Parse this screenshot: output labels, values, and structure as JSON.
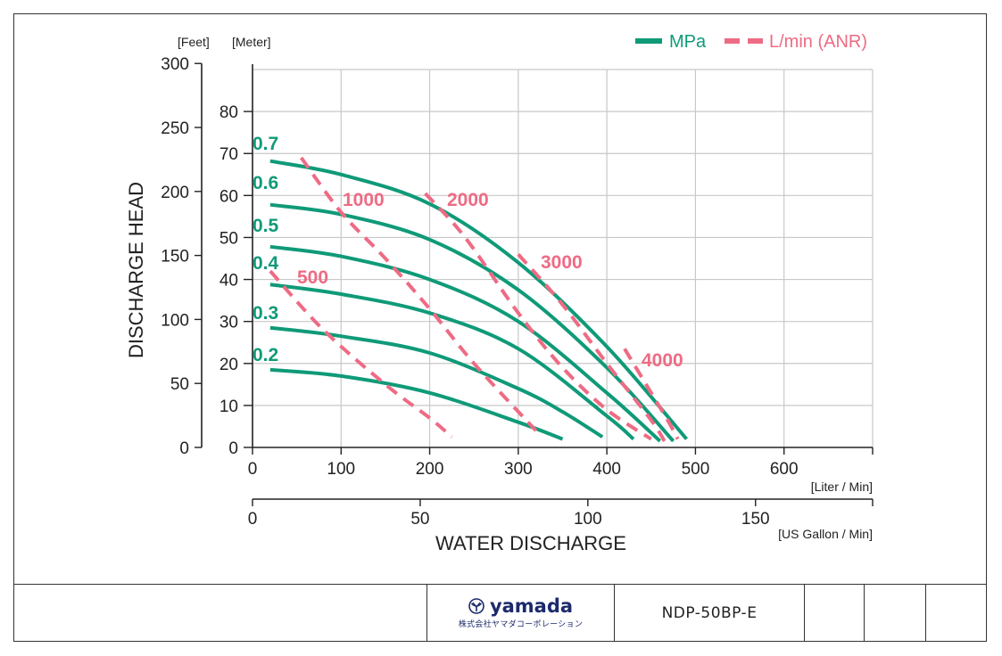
{
  "chart_data": {
    "type": "line",
    "xlabel": "WATER DISCHARGE",
    "x_unit_liter": "[Liter / Min]",
    "x_unit_gallon": "[US Gallon / Min]",
    "ylabel": "DISCHARGE HEAD",
    "y_unit_feet": "[Feet]",
    "y_unit_meter": "[Meter]",
    "xlim_liter": [
      0,
      700
    ],
    "ylim_meter": [
      0,
      90
    ],
    "x_ticks_liter": [
      0,
      100,
      200,
      300,
      400,
      500,
      600
    ],
    "x_ticks_gallon": [
      0,
      50,
      100,
      150
    ],
    "y_ticks_meter": [
      0,
      10,
      20,
      30,
      40,
      50,
      60,
      70,
      80
    ],
    "y_ticks_feet": [
      0,
      50,
      100,
      150,
      200,
      250,
      300
    ],
    "grid": true,
    "legend": {
      "position": "top-right",
      "items": [
        {
          "label": "MPa",
          "style": "solid",
          "color": "#0f9a78"
        },
        {
          "label": "L/min (ANR)",
          "style": "dashed",
          "color": "#ee6b84"
        }
      ]
    },
    "series": [
      {
        "name": "0.7",
        "kind": "MPa",
        "x": [
          20,
          100,
          200,
          300,
          400,
          490
        ],
        "y": [
          68.2,
          65,
          58,
          44,
          24,
          2
        ]
      },
      {
        "name": "0.6",
        "kind": "MPa",
        "x": [
          20,
          100,
          200,
          300,
          400,
          475
        ],
        "y": [
          57.8,
          55.5,
          49.5,
          37.5,
          19,
          1.5
        ]
      },
      {
        "name": "0.5",
        "kind": "MPa",
        "x": [
          20,
          100,
          200,
          300,
          400,
          460
        ],
        "y": [
          47.8,
          45.5,
          40,
          30,
          13,
          1.5
        ]
      },
      {
        "name": "0.4",
        "kind": "MPa",
        "x": [
          20,
          100,
          200,
          300,
          400,
          430
        ],
        "y": [
          38.8,
          36.5,
          32,
          23.5,
          7.5,
          2
        ]
      },
      {
        "name": "0.3",
        "kind": "MPa",
        "x": [
          20,
          100,
          200,
          300,
          350,
          395
        ],
        "y": [
          28.5,
          26.5,
          22.5,
          14,
          8.5,
          2.5
        ]
      },
      {
        "name": "0.2",
        "kind": "MPa",
        "x": [
          20,
          100,
          200,
          300,
          350
        ],
        "y": [
          18.5,
          17,
          13,
          6,
          2
        ]
      },
      {
        "name": "500",
        "kind": "L/min (ANR)",
        "x": [
          20,
          80,
          150,
          200,
          225
        ],
        "y": [
          42,
          28,
          15,
          7,
          2.5
        ]
      },
      {
        "name": "1000",
        "kind": "L/min (ANR)",
        "x": [
          55,
          100,
          150,
          200,
          250,
          320
        ],
        "y": [
          69,
          56,
          45,
          33,
          20,
          4
        ]
      },
      {
        "name": "2000",
        "kind": "L/min (ANR)",
        "x": [
          195,
          240,
          300,
          350,
          400,
          450
        ],
        "y": [
          60.5,
          50,
          32,
          19,
          9,
          2
        ]
      },
      {
        "name": "3000",
        "kind": "L/min (ANR)",
        "x": [
          300,
          350,
          400,
          450,
          465
        ],
        "y": [
          46,
          34,
          20,
          6.5,
          1.5
        ]
      },
      {
        "name": "4000",
        "kind": "L/min (ANR)",
        "x": [
          420,
          450,
          470,
          480
        ],
        "y": [
          23.5,
          13,
          6,
          2
        ]
      }
    ],
    "annotations": [
      {
        "text": "0.7",
        "color": "#0f9a78"
      },
      {
        "text": "0.6",
        "color": "#0f9a78"
      },
      {
        "text": "0.5",
        "color": "#0f9a78"
      },
      {
        "text": "0.4",
        "color": "#0f9a78"
      },
      {
        "text": "0.3",
        "color": "#0f9a78"
      },
      {
        "text": "0.2",
        "color": "#0f9a78"
      },
      {
        "text": "1000",
        "color": "#ee6b84"
      },
      {
        "text": "2000",
        "color": "#ee6b84"
      },
      {
        "text": "500",
        "color": "#ee6b84"
      },
      {
        "text": "3000",
        "color": "#ee6b84"
      },
      {
        "text": "4000",
        "color": "#ee6b84"
      }
    ]
  },
  "title_block": {
    "logo_text": "yamada",
    "logo_sub": "株式会社ヤマダコーポレーション",
    "model": "NDP-50BP-E"
  },
  "colors": {
    "mpa": "#0f9a78",
    "anr": "#ee6b84",
    "grid": "#c8c8c8",
    "axis": "#222222",
    "logo": "#1c2a6b"
  }
}
